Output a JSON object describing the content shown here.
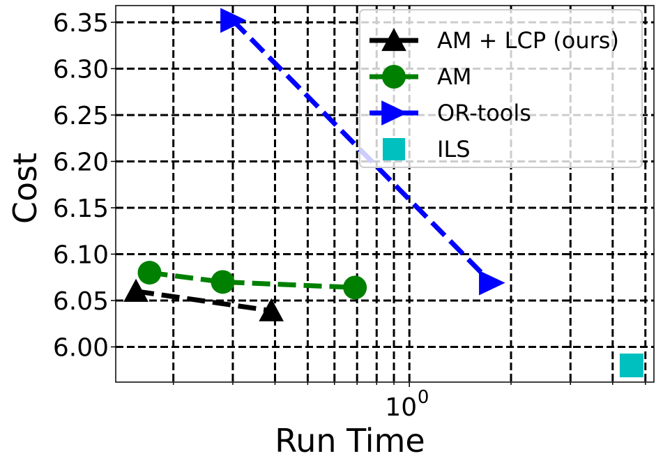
{
  "chart_data": {
    "type": "line",
    "xlabel": "Run Time",
    "ylabel": "Cost",
    "xscale": "log",
    "grid": true,
    "grid_style": "dashed black",
    "legend_position": "top-right",
    "xlim": [
      0.135,
      5.3
    ],
    "ylim": [
      5.962,
      6.368
    ],
    "x_ticks": [
      {
        "value": 1,
        "label_base": "10",
        "label_exp": "0"
      }
    ],
    "y_ticks": [
      {
        "value": 6.0,
        "label": "6.00"
      },
      {
        "value": 6.05,
        "label": "6.05"
      },
      {
        "value": 6.1,
        "label": "6.10"
      },
      {
        "value": 6.15,
        "label": "6.15"
      },
      {
        "value": 6.2,
        "label": "6.20"
      },
      {
        "value": 6.25,
        "label": "6.25"
      },
      {
        "value": 6.3,
        "label": "6.30"
      },
      {
        "value": 6.35,
        "label": "6.35"
      }
    ],
    "series": [
      {
        "name": "AM + LCP (ours)",
        "color": "#000000",
        "marker": "triangle-up",
        "line": "dashed",
        "x": [
          0.155,
          0.39
        ],
        "y": [
          6.06,
          6.039
        ]
      },
      {
        "name": "AM",
        "color": "#008000",
        "marker": "circle",
        "line": "dashed",
        "x": [
          0.17,
          0.28,
          0.69
        ],
        "y": [
          6.08,
          6.07,
          6.064
        ]
      },
      {
        "name": "OR-tools",
        "color": "#0000ff",
        "marker": "triangle-right",
        "line": "dashed",
        "x": [
          0.3,
          1.75
        ],
        "y": [
          6.352,
          6.069
        ]
      },
      {
        "name": "ILS",
        "color": "#00bfbf",
        "marker": "square",
        "line": "none",
        "x": [
          4.55
        ],
        "y": [
          5.98
        ]
      }
    ]
  }
}
